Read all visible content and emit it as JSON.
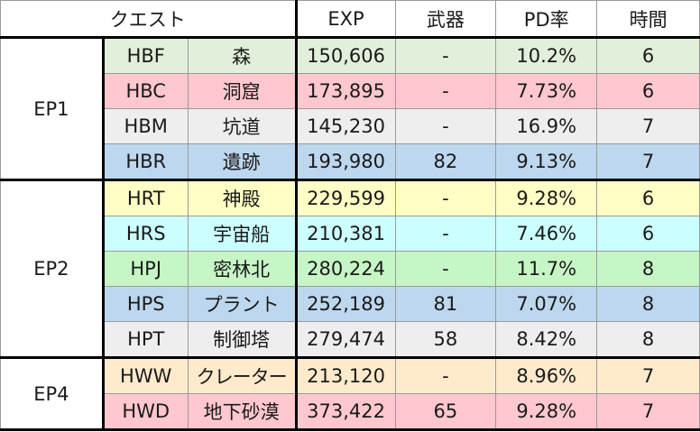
{
  "header": {
    "quest": "クエスト",
    "exp": "EXP",
    "weapon": "武器",
    "pd_rate": "PD率",
    "time": "時間"
  },
  "colors": {
    "green": "#e2efda",
    "pink": "#ffc7ce",
    "gray": "#eeeeee",
    "blue": "#bdd7ee",
    "yellow": "#ffffc5",
    "cyan": "#ccffff",
    "lightgreen": "#c6f6c6",
    "peach": "#ffeacc"
  },
  "groups": [
    {
      "episode": "EP1",
      "rows": [
        {
          "code": "HBF",
          "name": "森",
          "exp": "150,606",
          "weapon": "-",
          "pd": "10.2%",
          "time": "6",
          "color": "green"
        },
        {
          "code": "HBC",
          "name": "洞窟",
          "exp": "173,895",
          "weapon": "-",
          "pd": "7.73%",
          "time": "6",
          "color": "pink"
        },
        {
          "code": "HBM",
          "name": "坑道",
          "exp": "145,230",
          "weapon": "-",
          "pd": "16.9%",
          "time": "7",
          "color": "gray"
        },
        {
          "code": "HBR",
          "name": "遺跡",
          "exp": "193,980",
          "weapon": "82",
          "pd": "9.13%",
          "time": "7",
          "color": "blue"
        }
      ]
    },
    {
      "episode": "EP2",
      "rows": [
        {
          "code": "HRT",
          "name": "神殿",
          "exp": "229,599",
          "weapon": "-",
          "pd": "9.28%",
          "time": "6",
          "color": "yellow"
        },
        {
          "code": "HRS",
          "name": "宇宙船",
          "exp": "210,381",
          "weapon": "-",
          "pd": "7.46%",
          "time": "6",
          "color": "cyan"
        },
        {
          "code": "HPJ",
          "name": "密林北",
          "exp": "280,224",
          "weapon": "-",
          "pd": "11.7%",
          "time": "8",
          "color": "lightgreen"
        },
        {
          "code": "HPS",
          "name": "プラント",
          "exp": "252,189",
          "weapon": "81",
          "pd": "7.07%",
          "time": "8",
          "color": "blue"
        },
        {
          "code": "HPT",
          "name": "制御塔",
          "exp": "279,474",
          "weapon": "58",
          "pd": "8.42%",
          "time": "8",
          "color": "gray"
        }
      ]
    },
    {
      "episode": "EP4",
      "rows": [
        {
          "code": "HWW",
          "name": "クレーター",
          "exp": "213,120",
          "weapon": "-",
          "pd": "8.96%",
          "time": "7",
          "color": "peach"
        },
        {
          "code": "HWD",
          "name": "地下砂漠",
          "exp": "373,422",
          "weapon": "65",
          "pd": "9.28%",
          "time": "7",
          "color": "pink"
        }
      ]
    }
  ]
}
